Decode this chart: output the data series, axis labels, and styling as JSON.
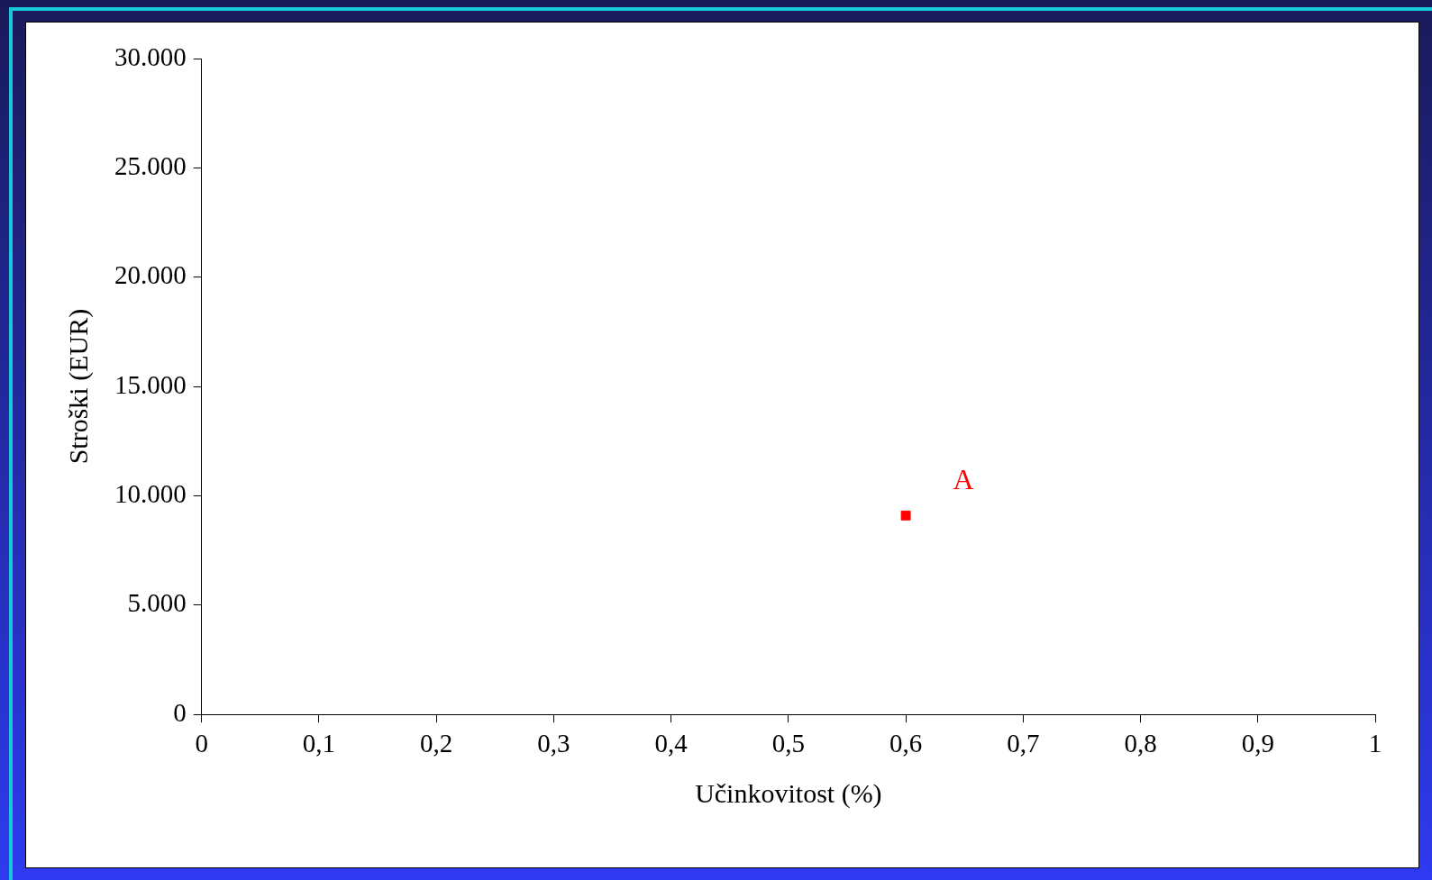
{
  "chart_data": {
    "type": "scatter",
    "xlabel": "Učinkovitost (%)",
    "ylabel": "Stroški (EUR)",
    "series": [
      {
        "x": [
          0.6
        ],
        "values": [
          9100
        ],
        "color": "#ff0000"
      }
    ],
    "marker": "square",
    "grid": false,
    "legend": false,
    "xlim": [
      0,
      1
    ],
    "ylim": [
      0,
      30000
    ],
    "xticks": [
      0,
      {
        "value": 0.1,
        "label": "0,1"
      },
      {
        "value": 0.2,
        "label": "0,2"
      },
      {
        "value": 0.3,
        "label": "0,3"
      },
      {
        "value": 0.4,
        "label": "0,4"
      },
      {
        "value": 0.5,
        "label": "0,5"
      },
      {
        "value": 0.6,
        "label": "0,6"
      },
      {
        "value": 0.7,
        "label": "0,7"
      },
      {
        "value": 0.8,
        "label": "0,8"
      },
      {
        "value": 0.9,
        "label": "0,9"
      },
      1
    ],
    "yticks": [
      0,
      {
        "value": 5000,
        "label": "5.000"
      },
      {
        "value": 10000,
        "label": "10.000"
      },
      {
        "value": 15000,
        "label": "15.000"
      },
      {
        "value": 20000,
        "label": "20.000"
      },
      {
        "value": 25000,
        "label": "25.000"
      },
      {
        "value": 30000,
        "label": "30.000"
      }
    ],
    "annotations": [
      "A"
    ]
  }
}
